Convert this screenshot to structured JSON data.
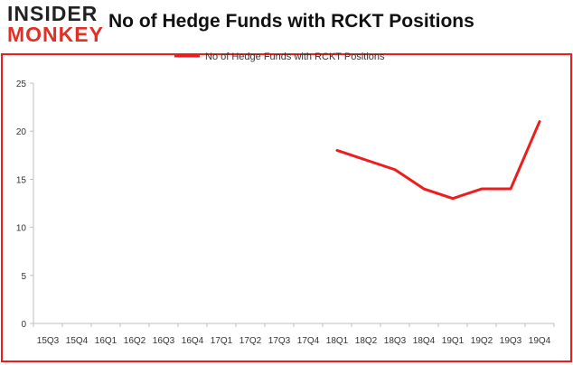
{
  "logo": {
    "line1": "INSIDER",
    "line2": "MONKEY"
  },
  "chart_data": {
    "type": "line",
    "title": "No of Hedge Funds with RCKT Positions",
    "xlabel": "",
    "ylabel": "",
    "categories": [
      "15Q3",
      "15Q4",
      "16Q1",
      "16Q2",
      "16Q3",
      "16Q4",
      "17Q1",
      "17Q2",
      "17Q3",
      "17Q4",
      "18Q1",
      "18Q2",
      "18Q3",
      "18Q4",
      "19Q1",
      "19Q2",
      "19Q3",
      "19Q4"
    ],
    "series": [
      {
        "name": "No of Hedge Funds with RCKT Positions",
        "values": [
          null,
          null,
          null,
          null,
          null,
          null,
          null,
          null,
          null,
          null,
          18,
          17,
          16,
          14,
          13,
          14,
          14,
          21
        ],
        "color": "#ee1c1c"
      }
    ],
    "ylim": [
      0,
      25
    ],
    "yticks": [
      0,
      5,
      10,
      15,
      20,
      25
    ],
    "grid": false,
    "legend_position": "top-center",
    "border_color": "#ee1c1c"
  }
}
